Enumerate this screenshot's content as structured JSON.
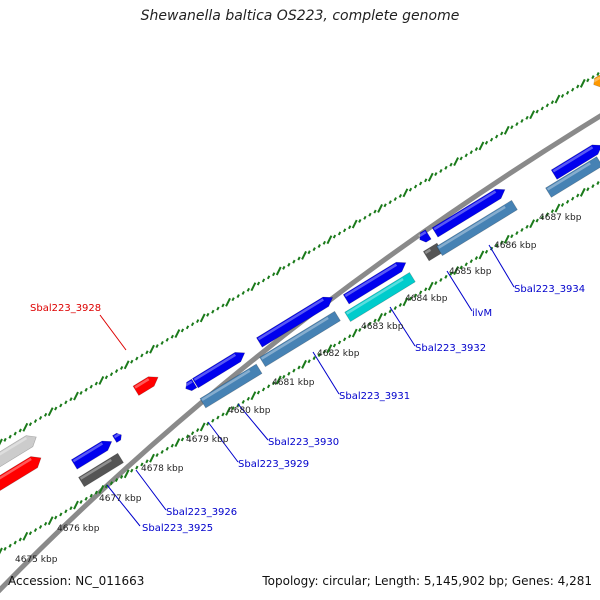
{
  "title": "Shewanella baltica OS223, complete genome",
  "footer": {
    "accession": "Accession: NC_011663",
    "summary": "Topology: circular; Length: 5,145,902 bp; Genes: 4,281"
  },
  "colors": {
    "backbone": "#8a8a8a",
    "ticks": "#1a7a1a",
    "cds": "#0000ee",
    "cds_secondary": "#4682b4",
    "highlight": "#00cccc",
    "rna": "#ff0000",
    "pseudo": "#808080",
    "other": "#ff9900",
    "label_blue": "#0000cc",
    "label_red": "#dd0000"
  },
  "kbp_labels": [
    "4675 kbp",
    "4676 kbp",
    "4677 kbp",
    "4678 kbp",
    "4679 kbp",
    "4680 kbp",
    "4681 kbp",
    "4682 kbp",
    "4683 kbp",
    "4684 kbp",
    "4685 kbp",
    "4686 kbp",
    "4687 kbp"
  ],
  "gene_labels": [
    {
      "text": "Sbal223_3928",
      "color": "red"
    },
    {
      "text": "Sbal223_3925",
      "color": "blue"
    },
    {
      "text": "Sbal223_3926",
      "color": "blue"
    },
    {
      "text": "Sbal223_3929",
      "color": "blue"
    },
    {
      "text": "Sbal223_3930",
      "color": "blue"
    },
    {
      "text": "Sbal223_3931",
      "color": "blue"
    },
    {
      "text": "Sbal223_3932",
      "color": "blue"
    },
    {
      "text": "ilvM",
      "color": "blue"
    },
    {
      "text": "Sbal223_3934",
      "color": "blue"
    }
  ]
}
